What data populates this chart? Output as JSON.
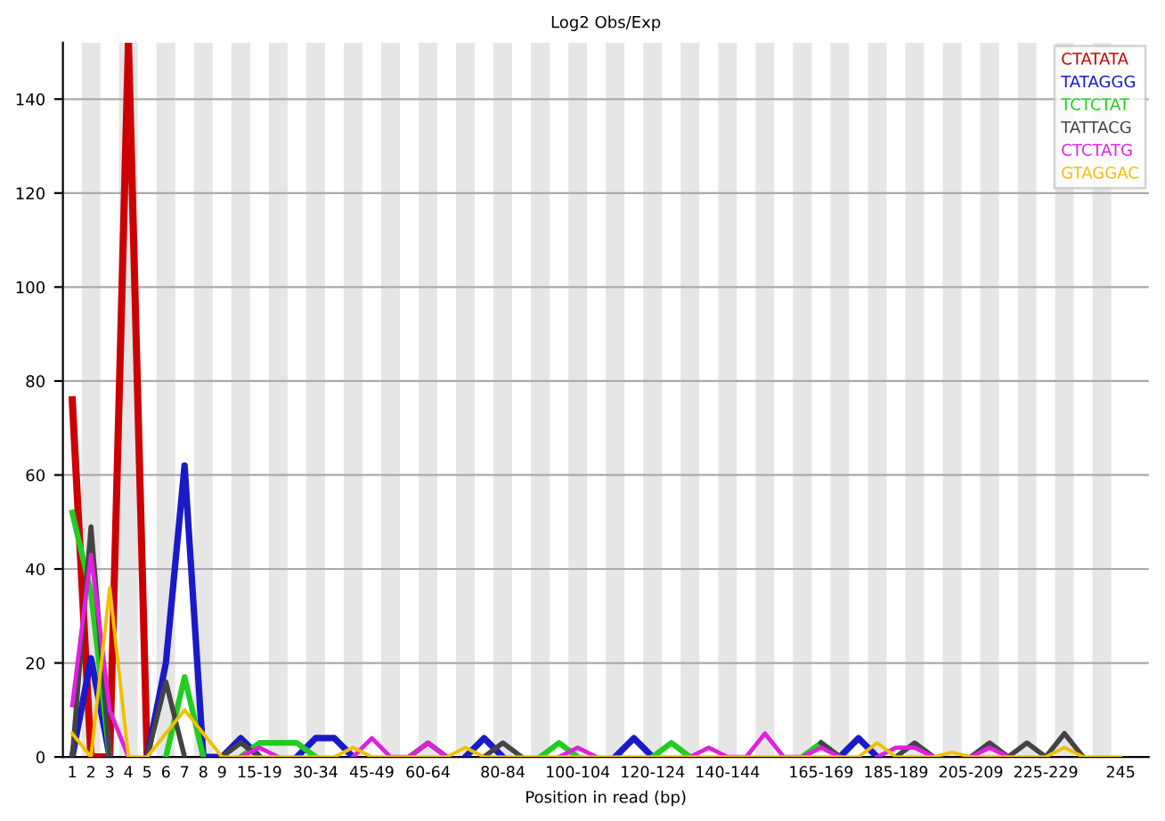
{
  "chart_data": {
    "type": "line",
    "title": "Log2 Obs/Exp",
    "xlabel": "Position in read (bp)",
    "categories": [
      "1",
      "2",
      "3",
      "4",
      "5",
      "6",
      "7",
      "8",
      "9",
      null,
      "15-19",
      null,
      null,
      "30-34",
      null,
      null,
      "45-49",
      null,
      null,
      "60-64",
      null,
      null,
      null,
      "80-84",
      null,
      null,
      null,
      "100-104",
      null,
      null,
      null,
      "120-124",
      null,
      null,
      null,
      "140-144",
      null,
      null,
      null,
      null,
      "165-169",
      null,
      null,
      null,
      "185-189",
      null,
      null,
      null,
      "205-209",
      null,
      null,
      null,
      "225-229",
      null,
      null,
      null,
      "245"
    ],
    "ylim": [
      0,
      152
    ],
    "yticks": [
      0,
      20,
      40,
      60,
      80,
      100,
      120,
      140
    ],
    "grid": "y",
    "legend": "top right",
    "marker": "none",
    "line_style": "solid",
    "series": [
      {
        "name": "CTATATA",
        "color": "#cc0000",
        "values": [
          76,
          0,
          0,
          152,
          0,
          null,
          null,
          null,
          null,
          null,
          null,
          null,
          null,
          null,
          null,
          null,
          null,
          null,
          null,
          null,
          null,
          null,
          null,
          null,
          null,
          null,
          null,
          null,
          null,
          null,
          null,
          null,
          null,
          null,
          null,
          null,
          null,
          null,
          null,
          null,
          null,
          null,
          null,
          null,
          null,
          null,
          null,
          null,
          null,
          null,
          null,
          null,
          null,
          null,
          null,
          null,
          null
        ]
      },
      {
        "name": "TATAGGG",
        "color": "#1a1ac8",
        "values": [
          0,
          21,
          0,
          null,
          0,
          20,
          62,
          0,
          0,
          4,
          0,
          null,
          0,
          4,
          4,
          0,
          null,
          null,
          null,
          null,
          null,
          0,
          4,
          0,
          null,
          null,
          null,
          null,
          null,
          0,
          4,
          0,
          null,
          null,
          null,
          null,
          null,
          null,
          null,
          null,
          null,
          0,
          4,
          0,
          null,
          null,
          null,
          null,
          null,
          null,
          null,
          null,
          null,
          null,
          null,
          null,
          null
        ]
      },
      {
        "name": "TCTCTAT",
        "color": "#22cc22",
        "values": [
          52,
          35,
          0,
          null,
          null,
          0,
          17,
          0,
          null,
          0,
          3,
          3,
          3,
          0,
          null,
          null,
          null,
          null,
          null,
          null,
          null,
          null,
          null,
          null,
          null,
          0,
          3,
          0,
          null,
          null,
          null,
          0,
          3,
          0,
          null,
          null,
          null,
          null,
          null,
          0,
          3,
          0,
          null,
          null,
          null,
          null,
          null,
          null,
          null,
          null,
          null,
          null,
          null,
          null,
          null,
          null,
          null
        ]
      },
      {
        "name": "TATTACG",
        "color": "#444444",
        "values": [
          0,
          49,
          0,
          null,
          0,
          16,
          0,
          null,
          0,
          3,
          0,
          null,
          null,
          null,
          null,
          null,
          null,
          null,
          0,
          3,
          0,
          null,
          0,
          3,
          0,
          null,
          null,
          null,
          null,
          null,
          null,
          null,
          null,
          null,
          null,
          null,
          null,
          null,
          null,
          null,
          3,
          0,
          null,
          null,
          0,
          3,
          0,
          null,
          0,
          3,
          0,
          3,
          0,
          5,
          0,
          null,
          null
        ]
      },
      {
        "name": "CTCTATG",
        "color": "#e020e0",
        "values": [
          11,
          43,
          10,
          0,
          null,
          null,
          null,
          null,
          null,
          0,
          2,
          0,
          null,
          null,
          null,
          0,
          4,
          0,
          0,
          3,
          0,
          null,
          null,
          null,
          null,
          null,
          0,
          2,
          0,
          null,
          null,
          null,
          null,
          0,
          2,
          0,
          0,
          5,
          0,
          0,
          2,
          0,
          null,
          0,
          2,
          2,
          0,
          null,
          0,
          2,
          0,
          null,
          null,
          null,
          null,
          null,
          null
        ]
      },
      {
        "name": "GTAGGAC",
        "color": "#f0c000",
        "values": [
          5,
          0,
          36,
          0,
          0,
          5,
          10,
          5,
          0,
          0,
          0,
          0,
          0,
          0,
          0,
          2,
          0,
          0,
          0,
          0,
          0,
          2,
          0,
          0,
          0,
          0,
          0,
          0,
          0,
          0,
          0,
          0,
          0,
          0,
          0,
          0,
          0,
          0,
          0,
          0,
          0,
          0,
          0,
          3,
          0,
          0,
          0,
          1,
          0,
          0,
          0,
          0,
          0,
          2,
          0,
          0,
          0
        ]
      }
    ]
  }
}
